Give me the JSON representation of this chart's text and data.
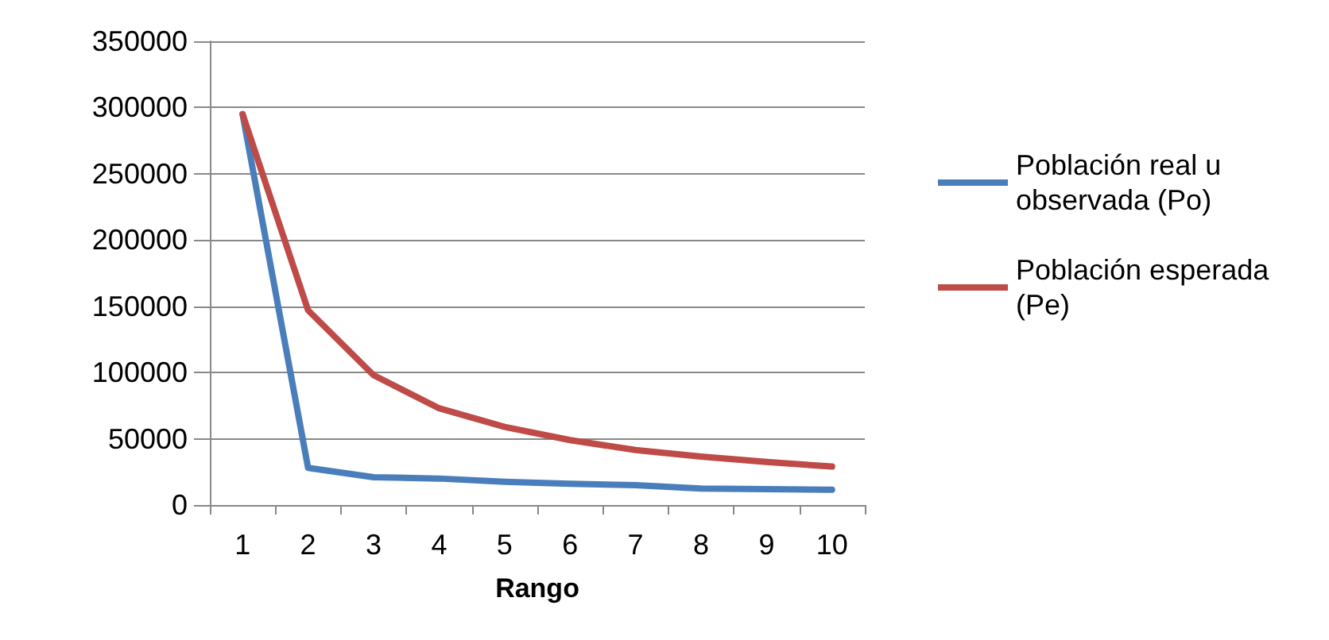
{
  "chart_data": {
    "type": "line",
    "xlabel": "Rango",
    "categories": [
      "1",
      "2",
      "3",
      "4",
      "5",
      "6",
      "7",
      "8",
      "9",
      "10"
    ],
    "series": [
      {
        "name": "Población real u observada (Po)",
        "color": "#4a7ebb",
        "values": [
          295000,
          28000,
          21000,
          20000,
          17500,
          16000,
          15000,
          12500,
          12000,
          11500
        ]
      },
      {
        "name": "Población esperada (Pe)",
        "color": "#be4b48",
        "values": [
          295000,
          147000,
          98000,
          73000,
          59000,
          49000,
          41500,
          36500,
          32500,
          29000
        ]
      }
    ],
    "ylim": [
      0,
      350000
    ],
    "yticks": [
      0,
      50000,
      100000,
      150000,
      200000,
      250000,
      300000,
      350000
    ],
    "grid": "y",
    "legend": "right",
    "marker": "none",
    "line_style": "solid"
  }
}
